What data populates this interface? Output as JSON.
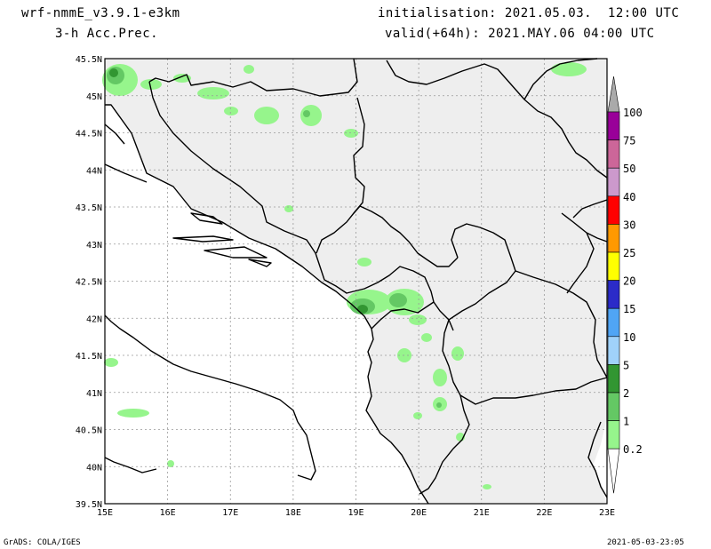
{
  "header": {
    "model": "wrf-nmmE_v3.9.1-e3km",
    "variable": "3-h Acc.Prec.",
    "initialisation": "initialisation: 2021.05.03.  12:00 UTC",
    "valid": "valid(+64h): 2021.MAY.06 04:00 UTC"
  },
  "footer": {
    "left": "GrADS: COLA/IGES",
    "right": "2021-05-03-23:05"
  },
  "map": {
    "region": "Western Balkans",
    "lon_range": [
      15,
      23
    ],
    "lat_range": [
      39.5,
      45.5
    ],
    "gridlines": true,
    "land_color": "#eeeeee",
    "sea_color": "#ffffff",
    "lon_labels": [
      "15E",
      "16E",
      "17E",
      "18E",
      "19E",
      "20E",
      "21E",
      "22E",
      "23E"
    ],
    "lat_labels": [
      "39.5N",
      "40N",
      "40.5N",
      "41N",
      "41.5N",
      "42N",
      "42.5N",
      "43N",
      "43.5N",
      "44N",
      "44.5N",
      "45N",
      "45.5N"
    ]
  },
  "colorbar": {
    "levels": [
      "0.2",
      "1",
      "2",
      "5",
      "10",
      "15",
      "20",
      "25",
      "30",
      "40",
      "50",
      "75",
      "100"
    ],
    "colors": [
      "#96f58c",
      "#64c864",
      "#329632",
      "#a0d2fa",
      "#50a5f5",
      "#2b2bc8",
      "#ffff00",
      "#ff9900",
      "#ff0000",
      "#cc99cc",
      "#cc6699",
      "#990099"
    ],
    "top_color": "#aaaaaa"
  }
}
